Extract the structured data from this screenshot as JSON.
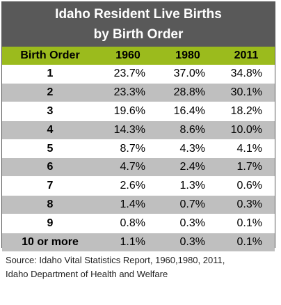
{
  "chart_data": {
    "type": "table",
    "title": "Idaho Resident Live Births",
    "subtitle": "by Birth Order",
    "columns": [
      "Birth Order",
      "1960",
      "1980",
      "2011"
    ],
    "rows": [
      {
        "order": "1",
        "values": [
          "23.7%",
          "37.0%",
          "34.8%"
        ]
      },
      {
        "order": "2",
        "values": [
          "23.3%",
          "28.8%",
          "30.1%"
        ]
      },
      {
        "order": "3",
        "values": [
          "19.6%",
          "16.4%",
          "18.2%"
        ]
      },
      {
        "order": "4",
        "values": [
          "14.3%",
          "8.6%",
          "10.0%"
        ]
      },
      {
        "order": "5",
        "values": [
          "8.7%",
          "4.3%",
          "4.1%"
        ]
      },
      {
        "order": "6",
        "values": [
          "4.7%",
          "2.4%",
          "1.7%"
        ]
      },
      {
        "order": "7",
        "values": [
          "2.6%",
          "1.3%",
          "0.6%"
        ]
      },
      {
        "order": "8",
        "values": [
          "1.4%",
          "0.7%",
          "0.3%"
        ]
      },
      {
        "order": "9",
        "values": [
          "0.8%",
          "0.3%",
          "0.1%"
        ]
      },
      {
        "order": "10 or more",
        "values": [
          "1.1%",
          "0.3%",
          "0.1%"
        ]
      }
    ],
    "source_line1": "Source: Idaho Vital Statistics Report, 1960,1980, 2011,",
    "source_line2": "Idaho Department of Health and Welfare"
  },
  "colors": {
    "title_bg": "#595959",
    "header_bg": "#9bbb1d",
    "shaded_row": "#bfbfbf"
  }
}
